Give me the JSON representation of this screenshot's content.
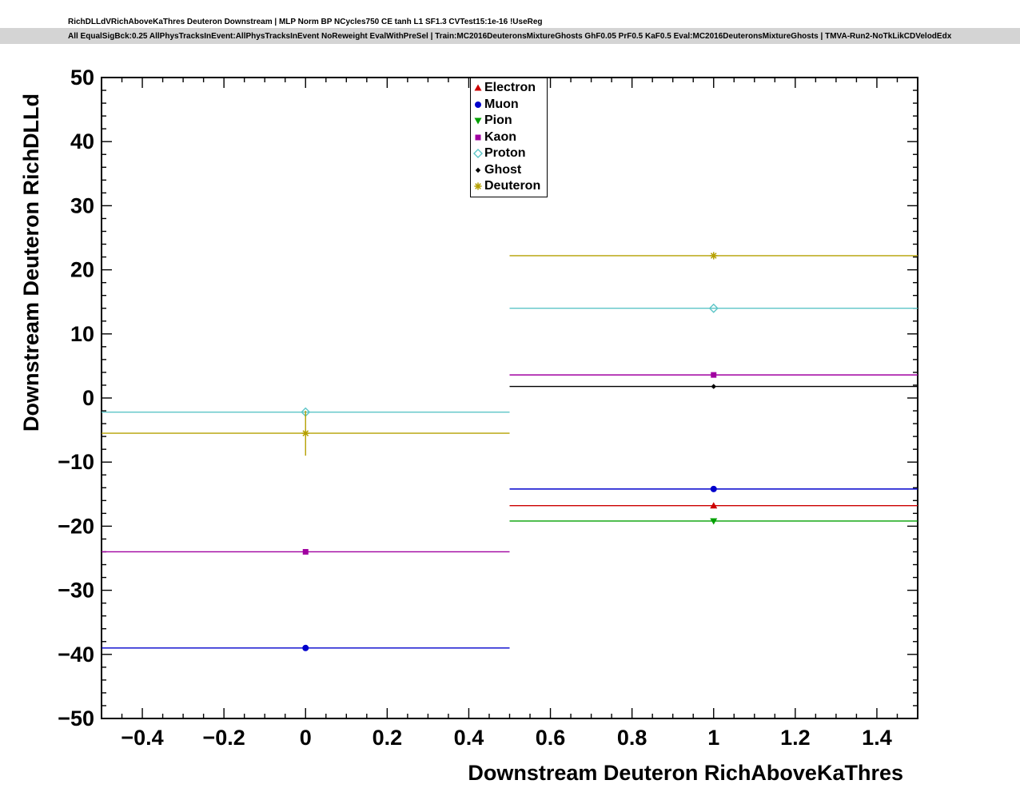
{
  "header": {
    "line1": "RichDLLdVRichAboveKaThres Deuteron Downstream | MLP Norm BP NCycles750 CE tanh L1 SF1.3 CVTest15:1e-16 !UseReg",
    "line2": "All EqualSigBck:0.25 AllPhysTracksInEvent:AllPhysTracksInEvent NoReweight EvalWithPreSel | Train:MC2016DeuteronsMixtureGhosts GhF0.05 PrF0.5 KaF0.5 Eval:MC2016DeuteronsMixtureGhosts | TMVA-Run2-NoTkLikCDVelodEdx"
  },
  "chart_data": {
    "type": "scatter",
    "title": "RichDLLdVRichAboveKaThres Deuteron Downstream | MLP Norm BP NCycles750 CE tanh L1 SF1.3 CVTest15:1e-16 !UseReg",
    "subtitle": "All EqualSigBck:0.25 AllPhysTracksInEvent:AllPhysTracksInEvent NoReweight EvalWithPreSel | Train:MC2016DeuteronsMixtureGhosts GhF0.05 PrF0.5 KaF0.5 Eval:MC2016DeuteronsMixtureGhosts | TMVA-Run2-NoTkLikCDVelodEdx",
    "xlabel": "Downstream Deuteron RichAboveKaThres",
    "ylabel": "Downstream Deuteron RichDLLd",
    "xlim": [
      -0.5,
      1.5
    ],
    "ylim": [
      -50,
      50
    ],
    "x_ticks": [
      -0.4,
      -0.2,
      0,
      0.2,
      0.4,
      0.6,
      0.8,
      1,
      1.2,
      1.4
    ],
    "y_ticks": [
      -50,
      -40,
      -30,
      -20,
      -10,
      0,
      10,
      20,
      30,
      40,
      50
    ],
    "grid": false,
    "legend_position": "top-center",
    "series": [
      {
        "name": "Electron",
        "color": "#cc0000",
        "marker": "triangle-up",
        "points": [
          {
            "x": 1,
            "y": -16.8,
            "xlow": 0.5,
            "xhigh": 1.5
          }
        ]
      },
      {
        "name": "Muon",
        "color": "#0000cc",
        "marker": "circle",
        "points": [
          {
            "x": 0,
            "y": -39.0,
            "xlow": -0.5,
            "xhigh": 0.5
          },
          {
            "x": 1,
            "y": -14.2,
            "xlow": 0.5,
            "xhigh": 1.5
          }
        ]
      },
      {
        "name": "Pion",
        "color": "#00a000",
        "marker": "triangle-down",
        "points": [
          {
            "x": 1,
            "y": -19.2,
            "xlow": 0.5,
            "xhigh": 1.5
          }
        ]
      },
      {
        "name": "Kaon",
        "color": "#a000a0",
        "marker": "square",
        "points": [
          {
            "x": 0,
            "y": -24.0,
            "xlow": -0.5,
            "xhigh": 0.5
          },
          {
            "x": 1,
            "y": 3.6,
            "xlow": 0.5,
            "xhigh": 1.5
          }
        ]
      },
      {
        "name": "Proton",
        "color": "#5cc5c7",
        "marker": "diamond-open",
        "points": [
          {
            "x": 0,
            "y": -2.2,
            "xlow": -0.5,
            "xhigh": 0.5
          },
          {
            "x": 1,
            "y": 14.0,
            "xlow": 0.5,
            "xhigh": 1.5
          }
        ]
      },
      {
        "name": "Ghost",
        "color": "#000000",
        "marker": "diamond-small",
        "points": [
          {
            "x": 1,
            "y": 1.8,
            "xlow": 0.5,
            "xhigh": 1.5
          }
        ]
      },
      {
        "name": "Deuteron",
        "color": "#b5a000",
        "marker": "star",
        "points": [
          {
            "x": 0,
            "y": -5.5,
            "xlow": -0.5,
            "xhigh": 0.5,
            "yerr": 3.5
          },
          {
            "x": 1,
            "y": 22.2,
            "xlow": 0.5,
            "xhigh": 1.5,
            "yerr": 0.5
          }
        ]
      }
    ]
  }
}
